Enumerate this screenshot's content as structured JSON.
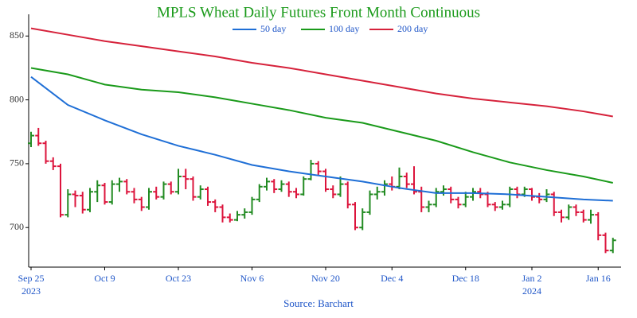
{
  "chart_data": {
    "type": "ohlc",
    "title": "MPLS Wheat Daily Futures Front Month Continuous",
    "source": "Source: Barchart",
    "legend": "top",
    "categories": [
      "Sep 25",
      null,
      null,
      null,
      null,
      null,
      null,
      null,
      null,
      null,
      "Oct 9",
      null,
      null,
      null,
      null,
      null,
      null,
      null,
      null,
      null,
      "Oct 23",
      null,
      null,
      null,
      null,
      null,
      null,
      null,
      null,
      null,
      "Nov 6",
      null,
      null,
      null,
      null,
      null,
      null,
      null,
      null,
      null,
      "Nov 20",
      null,
      null,
      null,
      null,
      null,
      null,
      null,
      null,
      "Dec 4",
      null,
      null,
      null,
      null,
      null,
      null,
      null,
      null,
      null,
      "Dec 18",
      null,
      null,
      null,
      null,
      null,
      null,
      null,
      null,
      "Jan 2",
      null,
      null,
      null,
      null,
      null,
      null,
      null,
      null,
      "Jan 16",
      null,
      null
    ],
    "category_sublabels": [
      "2023",
      null,
      null,
      null,
      null,
      null,
      null,
      null,
      null,
      null,
      null,
      null,
      null,
      null,
      null,
      null,
      null,
      null,
      null,
      null,
      null,
      null,
      null,
      null,
      null,
      null,
      null,
      null,
      null,
      null,
      null,
      null,
      null,
      null,
      null,
      null,
      null,
      null,
      null,
      null,
      null,
      null,
      null,
      null,
      null,
      null,
      null,
      null,
      null,
      null,
      null,
      null,
      null,
      null,
      null,
      null,
      null,
      null,
      null,
      null,
      null,
      null,
      null,
      null,
      null,
      null,
      null,
      null,
      "2024",
      null,
      null,
      null,
      null,
      null,
      null,
      null,
      null,
      null,
      null,
      null
    ],
    "ohlc": {
      "up_color": "#228b22",
      "down_color": "#dc143c",
      "open": [
        766,
        772,
        766,
        752,
        748,
        710,
        726,
        725,
        714,
        728,
        733,
        720,
        734,
        736,
        728,
        722,
        716,
        728,
        724,
        734,
        728,
        740,
        738,
        724,
        730,
        720,
        716,
        708,
        706,
        710,
        712,
        722,
        732,
        736,
        730,
        734,
        728,
        726,
        738,
        750,
        744,
        730,
        726,
        734,
        718,
        700,
        712,
        726,
        728,
        734,
        732,
        740,
        734,
        728,
        716,
        718,
        728,
        730,
        722,
        718,
        724,
        728,
        726,
        718,
        716,
        718,
        730,
        726,
        730,
        724,
        722,
        726,
        712,
        708,
        716,
        712,
        706,
        710,
        694,
        682
      ],
      "high": [
        775,
        778,
        768,
        755,
        750,
        730,
        729,
        728,
        731,
        737,
        735,
        737,
        739,
        738,
        731,
        724,
        731,
        732,
        736,
        736,
        746,
        746,
        740,
        733,
        732,
        722,
        718,
        711,
        713,
        715,
        724,
        734,
        739,
        738,
        737,
        736,
        731,
        740,
        753,
        752,
        746,
        733,
        740,
        736,
        720,
        715,
        729,
        732,
        737,
        740,
        747,
        743,
        748,
        732,
        721,
        731,
        733,
        732,
        724,
        728,
        731,
        731,
        728,
        720,
        721,
        732,
        732,
        732,
        731,
        727,
        730,
        728,
        714,
        718,
        718,
        714,
        714,
        712,
        696,
        692
      ],
      "low": [
        763,
        764,
        750,
        745,
        708,
        708,
        716,
        711,
        712,
        720,
        718,
        718,
        728,
        726,
        719,
        713,
        714,
        722,
        722,
        726,
        726,
        730,
        721,
        722,
        717,
        712,
        704,
        704,
        705,
        707,
        710,
        720,
        729,
        727,
        728,
        724,
        723,
        725,
        737,
        741,
        728,
        723,
        724,
        715,
        698,
        698,
        710,
        722,
        725,
        729,
        730,
        731,
        726,
        712,
        712,
        716,
        725,
        719,
        715,
        716,
        721,
        723,
        716,
        713,
        714,
        716,
        723,
        724,
        721,
        719,
        720,
        709,
        704,
        706,
        709,
        704,
        703,
        690,
        680,
        680
      ],
      "close": [
        772,
        766,
        752,
        748,
        710,
        726,
        725,
        714,
        728,
        733,
        720,
        734,
        736,
        728,
        722,
        716,
        728,
        724,
        734,
        728,
        740,
        738,
        724,
        730,
        720,
        716,
        708,
        706,
        710,
        712,
        722,
        732,
        736,
        730,
        734,
        728,
        726,
        738,
        750,
        744,
        730,
        726,
        734,
        718,
        700,
        712,
        726,
        728,
        734,
        732,
        740,
        734,
        728,
        716,
        718,
        728,
        730,
        722,
        718,
        724,
        728,
        726,
        718,
        716,
        718,
        730,
        726,
        730,
        724,
        722,
        726,
        712,
        708,
        716,
        712,
        706,
        710,
        694,
        682,
        690
      ]
    },
    "series": [
      {
        "name": "50 day",
        "color": "#1f6fd6",
        "x": [
          0,
          5,
          10,
          15,
          20,
          25,
          30,
          35,
          40,
          45,
          50,
          55,
          60,
          65,
          70,
          75,
          79
        ],
        "values": [
          818,
          796,
          784,
          773,
          764,
          757,
          749,
          744,
          740,
          736,
          731,
          727,
          727,
          726,
          724,
          722,
          721
        ]
      },
      {
        "name": "100 day",
        "color": "#1a9a1a",
        "x": [
          0,
          5,
          10,
          15,
          20,
          25,
          30,
          35,
          40,
          45,
          50,
          55,
          60,
          65,
          70,
          75,
          79
        ],
        "values": [
          825,
          820,
          812,
          808,
          806,
          802,
          797,
          792,
          786,
          782,
          775,
          768,
          759,
          751,
          745,
          740,
          735
        ]
      },
      {
        "name": "200 day",
        "color": "#d6223b",
        "x": [
          0,
          5,
          10,
          15,
          20,
          25,
          30,
          35,
          40,
          45,
          50,
          55,
          60,
          65,
          70,
          75,
          79
        ],
        "values": [
          856,
          851,
          846,
          842,
          838,
          834,
          829,
          825,
          820,
          815,
          810,
          805,
          801,
          798,
          795,
          791,
          787
        ]
      }
    ],
    "ylim": [
      669,
      867
    ],
    "yticks": [
      700,
      750,
      800,
      850
    ],
    "title_color": "#1a9a1a",
    "x_label_color": "#1f56c8"
  }
}
